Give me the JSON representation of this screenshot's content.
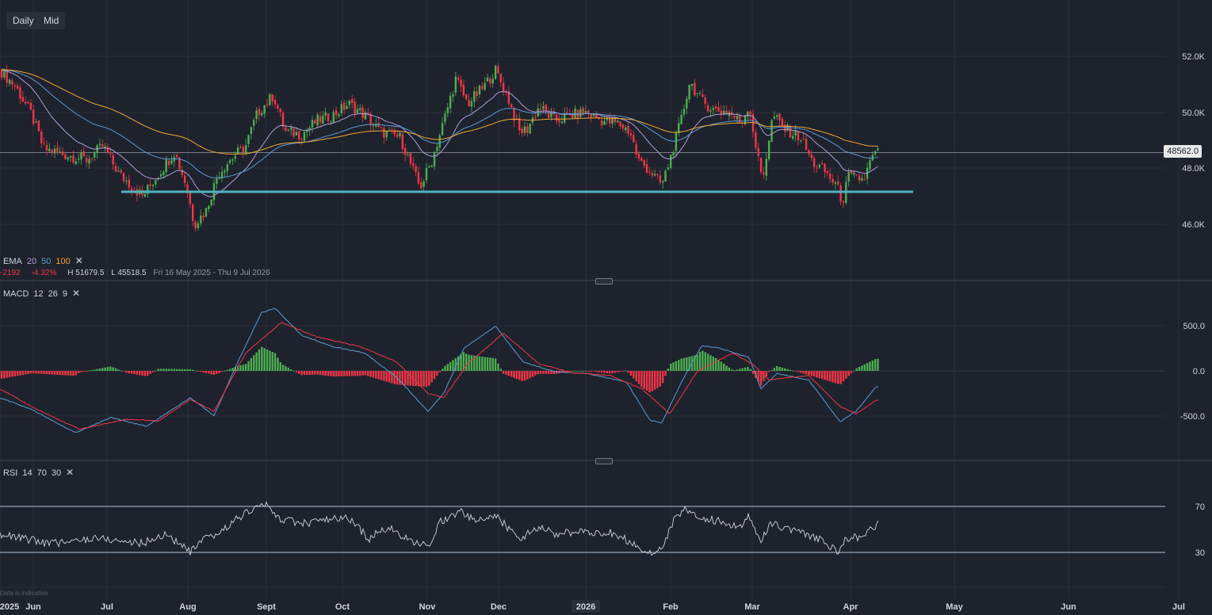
{
  "toolbar": {
    "interval_label": "Daily",
    "price_type_label": "Mid"
  },
  "price_tag": "48562.0",
  "footer_note": "Data is indicative",
  "ema_legend": {
    "name": "EMA",
    "p1": "20",
    "p2": "50",
    "p3": "100",
    "colors": {
      "p1": "#b39ddb",
      "p2": "#5b9bd5",
      "p3": "#f0a830"
    }
  },
  "stats": {
    "change": "-2192",
    "change_pct": "-4.32%",
    "high": "H 51679.5",
    "low": "L 45518.5",
    "range": "Fri 16 May 2025 - Thu 9 Jul 2026"
  },
  "macd_legend": {
    "name": "MACD",
    "fast": "12",
    "slow": "26",
    "signal": "9"
  },
  "rsi_legend": {
    "name": "RSI",
    "period": "14",
    "upper": "70",
    "lower": "30"
  },
  "colors": {
    "bg": "#1e222d",
    "up": "#4caf50",
    "down": "#f23645",
    "support": "#4fb3bf",
    "macd": "#5b9bd5",
    "signal": "#f23645",
    "rsi": "#d1d4dc"
  },
  "chart_data": [
    {
      "type": "candlestick",
      "title": "",
      "x_ticks": [
        "2025",
        "Jun",
        "Jul",
        "Aug",
        "Sept",
        "Oct",
        "Nov",
        "Dec",
        "2026",
        "Feb",
        "Mar",
        "Apr",
        "May",
        "Jun",
        "Jul"
      ],
      "y_ticks": [
        "52.0K",
        "50.0K",
        "48.0K",
        "46.0K"
      ],
      "ylim": [
        44000,
        53000
      ],
      "last_price": 48562.0,
      "support_level": 47160,
      "price_keypoints": [
        [
          0,
          51500
        ],
        [
          20,
          50900
        ],
        [
          40,
          49900
        ],
        [
          55,
          48700
        ],
        [
          80,
          48500
        ],
        [
          110,
          48300
        ],
        [
          130,
          48800
        ],
        [
          150,
          47800
        ],
        [
          180,
          47000
        ],
        [
          200,
          47800
        ],
        [
          220,
          48600
        ],
        [
          235,
          47400
        ],
        [
          245,
          46000
        ],
        [
          260,
          46500
        ],
        [
          275,
          47800
        ],
        [
          290,
          48300
        ],
        [
          310,
          48800
        ],
        [
          325,
          50000
        ],
        [
          345,
          50600
        ],
        [
          360,
          49300
        ],
        [
          380,
          49200
        ],
        [
          400,
          49700
        ],
        [
          420,
          49900
        ],
        [
          440,
          50300
        ],
        [
          460,
          49900
        ],
        [
          480,
          49300
        ],
        [
          505,
          49100
        ],
        [
          520,
          48000
        ],
        [
          530,
          47300
        ],
        [
          545,
          48300
        ],
        [
          560,
          49700
        ],
        [
          575,
          51200
        ],
        [
          590,
          50300
        ],
        [
          610,
          50900
        ],
        [
          625,
          51500
        ],
        [
          640,
          50600
        ],
        [
          655,
          49300
        ],
        [
          665,
          49400
        ],
        [
          680,
          50200
        ],
        [
          700,
          49700
        ],
        [
          720,
          49900
        ],
        [
          740,
          50000
        ],
        [
          760,
          49700
        ],
        [
          780,
          49600
        ],
        [
          795,
          49300
        ],
        [
          805,
          48300
        ],
        [
          820,
          47900
        ],
        [
          835,
          47400
        ],
        [
          845,
          48300
        ],
        [
          860,
          49800
        ],
        [
          870,
          51100
        ],
        [
          885,
          50400
        ],
        [
          900,
          50100
        ],
        [
          920,
          50000
        ],
        [
          935,
          49600
        ],
        [
          945,
          50300
        ],
        [
          955,
          48500
        ],
        [
          962,
          47600
        ],
        [
          975,
          49900
        ],
        [
          990,
          49400
        ],
        [
          1010,
          49100
        ],
        [
          1025,
          48200
        ],
        [
          1040,
          47900
        ],
        [
          1055,
          47400
        ],
        [
          1063,
          46800
        ],
        [
          1070,
          47700
        ],
        [
          1090,
          47600
        ],
        [
          1100,
          48400
        ],
        [
          1108,
          48562
        ]
      ],
      "series": [
        {
          "name": "EMA 20"
        },
        {
          "name": "EMA 50"
        },
        {
          "name": "EMA 100"
        }
      ]
    },
    {
      "type": "macd",
      "y_ticks": [
        "500.0",
        "0.0",
        "-500.0"
      ],
      "ylim": [
        -1000,
        800
      ],
      "macd_keypoints": [
        [
          0,
          -300
        ],
        [
          40,
          -430
        ],
        [
          95,
          -690
        ],
        [
          140,
          -520
        ],
        [
          185,
          -620
        ],
        [
          240,
          -300
        ],
        [
          270,
          -500
        ],
        [
          300,
          100
        ],
        [
          330,
          650
        ],
        [
          347,
          700
        ],
        [
          380,
          400
        ],
        [
          420,
          270
        ],
        [
          460,
          200
        ],
        [
          500,
          -70
        ],
        [
          540,
          -450
        ],
        [
          560,
          -250
        ],
        [
          585,
          250
        ],
        [
          625,
          500
        ],
        [
          660,
          100
        ],
        [
          700,
          -10
        ],
        [
          740,
          -30
        ],
        [
          790,
          -120
        ],
        [
          820,
          -550
        ],
        [
          835,
          -580
        ],
        [
          860,
          -120
        ],
        [
          885,
          280
        ],
        [
          905,
          260
        ],
        [
          945,
          150
        ],
        [
          960,
          -200
        ],
        [
          980,
          -30
        ],
        [
          1020,
          -100
        ],
        [
          1060,
          -570
        ],
        [
          1080,
          -450
        ],
        [
          1105,
          -180
        ]
      ],
      "signal_keypoints": [
        [
          0,
          -200
        ],
        [
          40,
          -400
        ],
        [
          100,
          -650
        ],
        [
          160,
          -540
        ],
        [
          200,
          -560
        ],
        [
          240,
          -320
        ],
        [
          270,
          -450
        ],
        [
          310,
          200
        ],
        [
          355,
          540
        ],
        [
          400,
          380
        ],
        [
          455,
          270
        ],
        [
          500,
          100
        ],
        [
          540,
          -250
        ],
        [
          560,
          -300
        ],
        [
          590,
          80
        ],
        [
          635,
          420
        ],
        [
          680,
          80
        ],
        [
          720,
          -20
        ],
        [
          770,
          -50
        ],
        [
          810,
          -200
        ],
        [
          845,
          -480
        ],
        [
          880,
          0
        ],
        [
          925,
          200
        ],
        [
          950,
          70
        ],
        [
          970,
          -100
        ],
        [
          1020,
          -50
        ],
        [
          1060,
          -400
        ],
        [
          1080,
          -480
        ],
        [
          1105,
          -330
        ]
      ]
    },
    {
      "type": "rsi",
      "y_ticks": [
        "70",
        "30"
      ],
      "ylim": [
        0,
        100
      ],
      "upper": 70,
      "lower": 30,
      "rsi_keypoints": [
        [
          0,
          46
        ],
        [
          30,
          42
        ],
        [
          60,
          38
        ],
        [
          90,
          39
        ],
        [
          120,
          43
        ],
        [
          150,
          40
        ],
        [
          180,
          38
        ],
        [
          210,
          46
        ],
        [
          240,
          30
        ],
        [
          255,
          40
        ],
        [
          275,
          46
        ],
        [
          300,
          60
        ],
        [
          320,
          68
        ],
        [
          335,
          72
        ],
        [
          350,
          60
        ],
        [
          380,
          55
        ],
        [
          410,
          58
        ],
        [
          440,
          60
        ],
        [
          465,
          42
        ],
        [
          490,
          52
        ],
        [
          520,
          38
        ],
        [
          540,
          36
        ],
        [
          555,
          56
        ],
        [
          580,
          66
        ],
        [
          600,
          57
        ],
        [
          625,
          62
        ],
        [
          655,
          42
        ],
        [
          680,
          52
        ],
        [
          700,
          46
        ],
        [
          740,
          48
        ],
        [
          770,
          47
        ],
        [
          800,
          38
        ],
        [
          815,
          30
        ],
        [
          835,
          32
        ],
        [
          850,
          58
        ],
        [
          865,
          67
        ],
        [
          885,
          60
        ],
        [
          910,
          57
        ],
        [
          935,
          52
        ],
        [
          945,
          63
        ],
        [
          960,
          38
        ],
        [
          970,
          55
        ],
        [
          1000,
          50
        ],
        [
          1020,
          44
        ],
        [
          1040,
          40
        ],
        [
          1058,
          30
        ],
        [
          1068,
          42
        ],
        [
          1090,
          44
        ],
        [
          1108,
          55
        ]
      ]
    }
  ]
}
